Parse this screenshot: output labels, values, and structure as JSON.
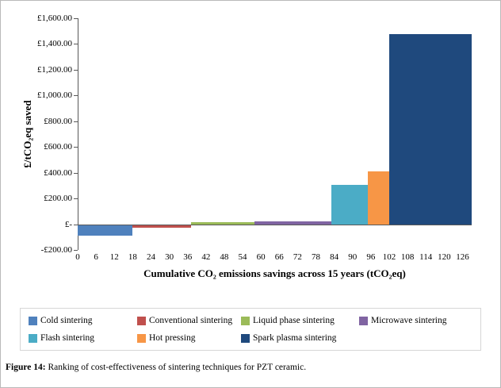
{
  "figure": {
    "caption_label": "Figure 14:",
    "caption_text": " Ranking of cost-effectiveness of sintering techniques for PZT ceramic."
  },
  "chart_data": {
    "type": "bar",
    "subtype": "variable-width-cost-effectiveness-curve",
    "title": "",
    "xlabel": "Cumulative CO₂ emissions savings across 15 years (tCO₂eq)",
    "ylabel": "£/tCO₂eq saved",
    "xlim": [
      0,
      129
    ],
    "ylim": [
      -200,
      1600
    ],
    "grid": false,
    "legend_position": "bottom",
    "x_ticks": [
      0,
      6,
      12,
      18,
      24,
      30,
      36,
      42,
      48,
      54,
      60,
      66,
      72,
      78,
      84,
      90,
      96,
      102,
      108,
      114,
      120,
      126
    ],
    "y_ticks": [
      {
        "value": 1600,
        "label": "£1,600.00"
      },
      {
        "value": 1400,
        "label": "£1,400.00"
      },
      {
        "value": 1200,
        "label": "£1,200.00"
      },
      {
        "value": 1000,
        "label": "£1,000.00"
      },
      {
        "value": 800,
        "label": "£800.00"
      },
      {
        "value": 600,
        "label": "£600.00"
      },
      {
        "value": 400,
        "label": "£400.00"
      },
      {
        "value": 200,
        "label": "£200.00"
      },
      {
        "value": 0,
        "label": "£-"
      },
      {
        "value": -200,
        "label": "-£200.00"
      }
    ],
    "series": [
      {
        "name": "Cold sintering",
        "color": "#4F81BD",
        "x_start": 0,
        "x_end": 18,
        "value": -80
      },
      {
        "name": "Conventional sintering",
        "color": "#C0504D",
        "x_start": 18,
        "x_end": 37,
        "value": -20
      },
      {
        "name": "Liquid phase sintering",
        "color": "#9BBB59",
        "x_start": 37,
        "x_end": 58,
        "value": 15
      },
      {
        "name": "Microwave sintering",
        "color": "#8064A2",
        "x_start": 58,
        "x_end": 83,
        "value": 20
      },
      {
        "name": "Flash sintering",
        "color": "#4BACC6",
        "x_start": 83,
        "x_end": 95,
        "value": 305
      },
      {
        "name": "Hot pressing",
        "color": "#F79646",
        "x_start": 95,
        "x_end": 102,
        "value": 410
      },
      {
        "name": "Spark plasma sintering",
        "color": "#1F497D",
        "x_start": 102,
        "x_end": 129,
        "value": 1475
      }
    ]
  }
}
